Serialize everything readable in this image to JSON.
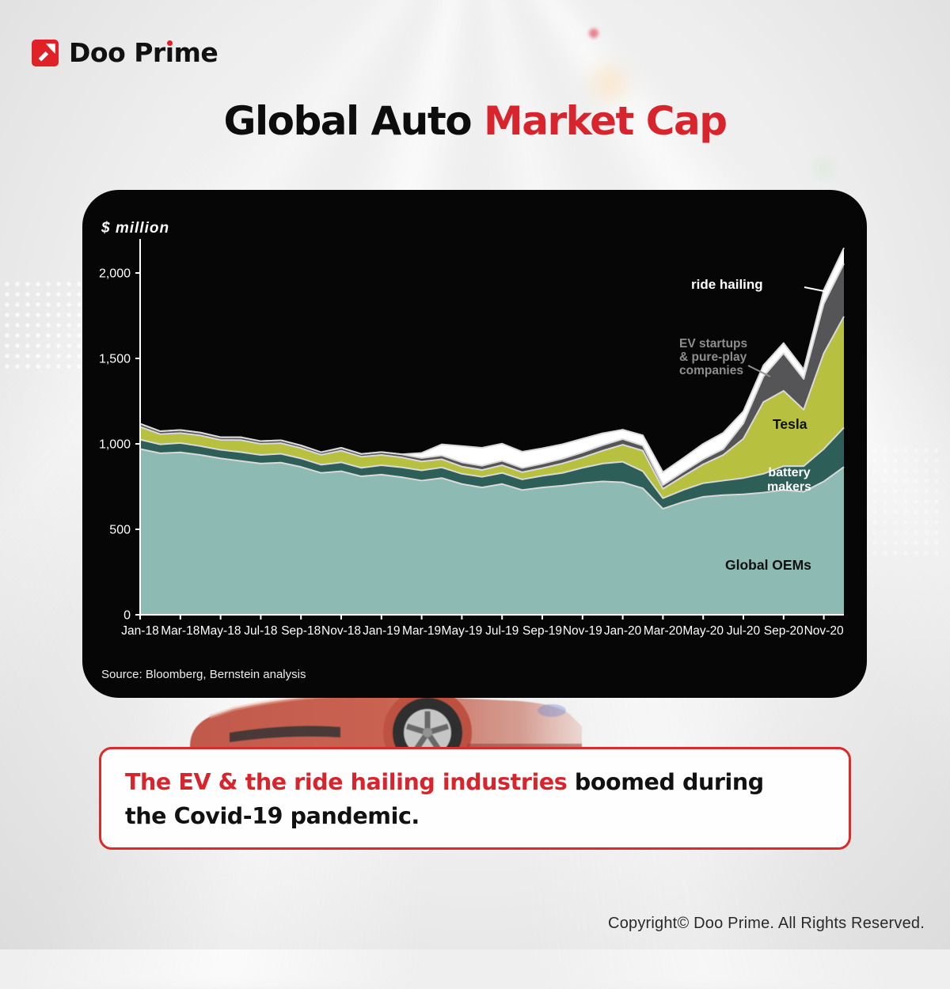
{
  "logo": {
    "pre": "Doo Pr",
    "i_char": "ı",
    "post": "me"
  },
  "title": {
    "black": "Global Auto ",
    "red": "Market Cap"
  },
  "caption": {
    "red": "The EV & the ride hailing industries ",
    "black_line1": "boomed during",
    "black_line2": "the Covid-19 pandemic."
  },
  "footer": {
    "copyright": "Copyright© Doo Prime. All Rights Reserved."
  },
  "chart_data": {
    "type": "area",
    "stacked": true,
    "title": "Global Auto Market Cap",
    "unit_label": "$ million",
    "source": "Source: Bloomberg, Bernstein analysis",
    "ylim": [
      0,
      2160
    ],
    "grid": false,
    "axis_color": "#ffffff",
    "band_outline_color": "#d9d9d9",
    "y_ticks": [
      {
        "value": 0,
        "label": "0"
      },
      {
        "value": 500,
        "label": "500"
      },
      {
        "value": 1000,
        "label": "1,000"
      },
      {
        "value": 1500,
        "label": "1,500"
      },
      {
        "value": 2000,
        "label": "2,000"
      }
    ],
    "categories": [
      "Jan-18",
      "Feb-18",
      "Mar-18",
      "Apr-18",
      "May-18",
      "Jun-18",
      "Jul-18",
      "Aug-18",
      "Sep-18",
      "Oct-18",
      "Nov-18",
      "Dec-18",
      "Jan-19",
      "Feb-19",
      "Mar-19",
      "Apr-19",
      "May-19",
      "Jun-19",
      "Jul-19",
      "Aug-19",
      "Sep-19",
      "Oct-19",
      "Nov-19",
      "Dec-19",
      "Jan-20",
      "Feb-20",
      "Mar-20",
      "Apr-20",
      "May-20",
      "Jun-20",
      "Jul-20",
      "Aug-20",
      "Sep-20",
      "Oct-20",
      "Nov-20",
      "Dec-20"
    ],
    "x_tick_every": 2,
    "series": [
      {
        "name": "Global OEMs",
        "color": "#8dbab2",
        "values": [
          970,
          945,
          950,
          935,
          915,
          900,
          885,
          890,
          865,
          830,
          840,
          810,
          820,
          805,
          785,
          800,
          765,
          745,
          765,
          730,
          745,
          755,
          770,
          780,
          775,
          740,
          620,
          660,
          690,
          700,
          705,
          715,
          730,
          720,
          780,
          865
        ]
      },
      {
        "name": "battery makers",
        "color": "#2e5e58",
        "values": [
          55,
          52,
          55,
          52,
          50,
          52,
          50,
          52,
          50,
          48,
          52,
          50,
          55,
          58,
          60,
          62,
          60,
          62,
          65,
          62,
          68,
          75,
          90,
          105,
          120,
          100,
          62,
          70,
          80,
          85,
          95,
          110,
          140,
          150,
          190,
          230
        ]
      },
      {
        "name": "Tesla",
        "color": "#b7c03f",
        "values": [
          75,
          60,
          58,
          62,
          58,
          70,
          65,
          62,
          60,
          58,
          68,
          65,
          60,
          58,
          52,
          48,
          42,
          40,
          45,
          42,
          45,
          55,
          60,
          75,
          100,
          120,
          55,
          80,
          110,
          150,
          230,
          420,
          440,
          330,
          560,
          650
        ]
      },
      {
        "name": "EV startups & pure-play companies",
        "color": "#555557",
        "values": [
          18,
          17,
          18,
          17,
          16,
          17,
          16,
          17,
          16,
          15,
          17,
          16,
          17,
          18,
          20,
          22,
          25,
          25,
          26,
          25,
          26,
          28,
          30,
          32,
          33,
          30,
          22,
          26,
          30,
          35,
          90,
          150,
          220,
          180,
          290,
          310
        ]
      },
      {
        "name": "ride hailing",
        "color": "#ffffff",
        "values": [
          0,
          0,
          0,
          0,
          0,
          0,
          0,
          0,
          0,
          0,
          0,
          0,
          0,
          0,
          30,
          65,
          95,
          105,
          100,
          95,
          90,
          85,
          80,
          70,
          55,
          60,
          75,
          80,
          90,
          95,
          70,
          65,
          60,
          55,
          80,
          92
        ]
      }
    ],
    "labels": {
      "ride_hailing": "ride hailing",
      "ev_startups": "EV startups\n& pure-play\ncompanies",
      "tesla": "Tesla",
      "battery_makers": "battery\nmakers",
      "global_oems": "Global OEMs"
    }
  }
}
